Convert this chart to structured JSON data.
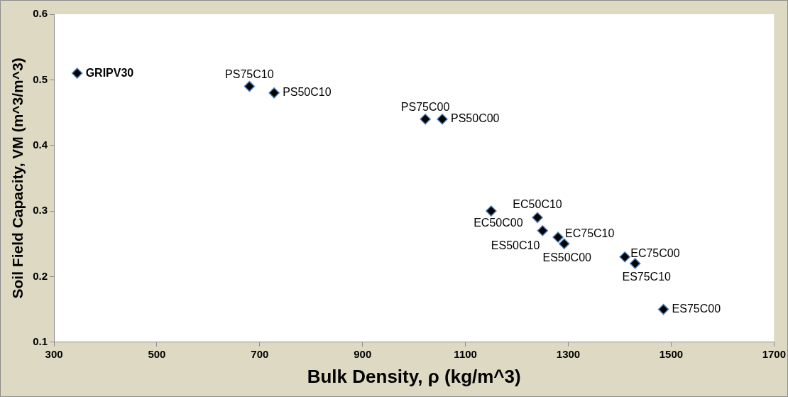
{
  "chart_data": {
    "type": "scatter",
    "xlabel": "Bulk Density, ρ (kg/m^3)",
    "ylabel": "Soil Field Capacity, VM (m^3/m^3)",
    "x": [
      345,
      680,
      728,
      1022,
      1055,
      1150,
      1240,
      1250,
      1280,
      1292,
      1410,
      1430,
      1485
    ],
    "values": [
      0.51,
      0.49,
      0.48,
      0.44,
      0.44,
      0.3,
      0.29,
      0.27,
      0.26,
      0.25,
      0.23,
      0.22,
      0.15
    ],
    "color": "#000000",
    "marker": "diamond",
    "grid": false,
    "legend": false,
    "xlim": [
      300,
      1700
    ],
    "xticks": [
      300,
      500,
      700,
      900,
      1100,
      1300,
      1500,
      1700
    ],
    "ylim": [
      0.1,
      0.6
    ],
    "yticks": [
      0.1,
      0.2,
      0.3,
      0.4,
      0.5,
      0.6
    ],
    "annotations": [
      {
        "text": "GRIPV30",
        "x": 345,
        "y": 0.51
      },
      {
        "text": "PS75C10",
        "x": 680,
        "y": 0.49
      },
      {
        "text": "PS50C10",
        "x": 728,
        "y": 0.48
      },
      {
        "text": "PS75C00",
        "x": 1022,
        "y": 0.44
      },
      {
        "text": "PS50C00",
        "x": 1055,
        "y": 0.44
      },
      {
        "text": "EC50C00",
        "x": 1150,
        "y": 0.3
      },
      {
        "text": "EC50C10",
        "x": 1240,
        "y": 0.29
      },
      {
        "text": "ES50C10",
        "x": 1250,
        "y": 0.27
      },
      {
        "text": "EC75C10",
        "x": 1280,
        "y": 0.26
      },
      {
        "text": "ES50C00",
        "x": 1292,
        "y": 0.25
      },
      {
        "text": "EC75C00",
        "x": 1410,
        "y": 0.23
      },
      {
        "text": "ES75C10",
        "x": 1430,
        "y": 0.22
      },
      {
        "text": "ES75C00",
        "x": 1485,
        "y": 0.15
      }
    ]
  }
}
